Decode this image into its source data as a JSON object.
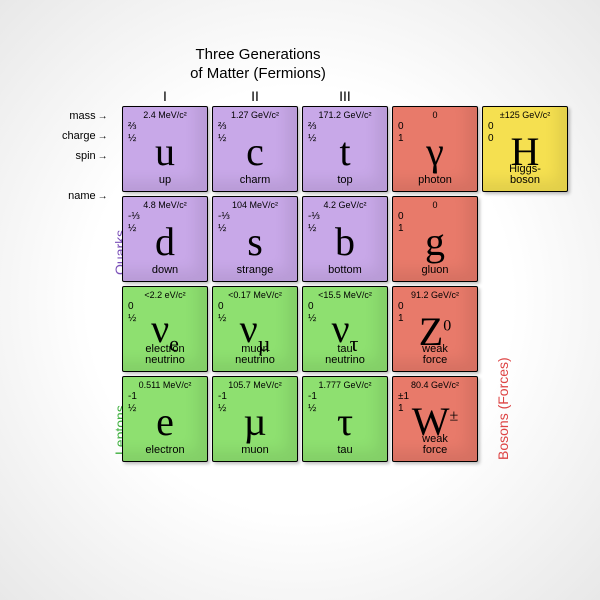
{
  "title_line1": "Three Generations",
  "title_line2": "of Matter (Fermions)",
  "generations": [
    "I",
    "II",
    "III"
  ],
  "leftLabels": [
    "mass",
    "charge",
    "spin",
    "",
    "name"
  ],
  "sideLabels": {
    "quarks": "Quarks",
    "leptons": "Leptons",
    "bosons": "Bosons (Forces)"
  },
  "colors": {
    "quark": "#c8a8e8",
    "lepton": "#8ee070",
    "boson": "#e87a6a",
    "higgs": "#f5e050"
  },
  "grid": [
    [
      {
        "mass": "2.4 MeV/c²",
        "charge": "⅔",
        "spin": "½",
        "symbol": "u",
        "name": "up",
        "color": "quark"
      },
      {
        "mass": "1.27 GeV/c²",
        "charge": "⅔",
        "spin": "½",
        "symbol": "c",
        "name": "charm",
        "color": "quark"
      },
      {
        "mass": "171.2 GeV/c²",
        "charge": "⅔",
        "spin": "½",
        "symbol": "t",
        "name": "top",
        "color": "quark"
      },
      {
        "mass": "0",
        "charge": "0",
        "spin": "1",
        "symbol": "γ",
        "name": "photon",
        "color": "boson"
      },
      {
        "mass": "±125 GeV/c²",
        "charge": "0",
        "spin": "0",
        "symbol": "H",
        "name": "Higgs-\nboson",
        "color": "higgs"
      }
    ],
    [
      {
        "mass": "4.8 MeV/c²",
        "charge": "-⅓",
        "spin": "½",
        "symbol": "d",
        "name": "down",
        "color": "quark"
      },
      {
        "mass": "104 MeV/c²",
        "charge": "-⅓",
        "spin": "½",
        "symbol": "s",
        "name": "strange",
        "color": "quark"
      },
      {
        "mass": "4.2 GeV/c²",
        "charge": "-⅓",
        "spin": "½",
        "symbol": "b",
        "name": "bottom",
        "color": "quark"
      },
      {
        "mass": "0",
        "charge": "0",
        "spin": "1",
        "symbol": "g",
        "name": "gluon",
        "color": "boson"
      },
      null
    ],
    [
      {
        "mass": "<2.2 eV/c²",
        "charge": "0",
        "spin": "½",
        "symbol": "νe",
        "name": "electron\nneutrino",
        "color": "lepton"
      },
      {
        "mass": "<0.17 MeV/c²",
        "charge": "0",
        "spin": "½",
        "symbol": "νµ",
        "name": "muon\nneutrino",
        "color": "lepton"
      },
      {
        "mass": "<15.5 MeV/c²",
        "charge": "0",
        "spin": "½",
        "symbol": "ντ",
        "name": "tau\nneutrino",
        "color": "lepton"
      },
      {
        "mass": "91.2 GeV/c²",
        "charge": "0",
        "spin": "1",
        "symbol": "Z",
        "name": "weak\nforce",
        "color": "boson",
        "super": "0"
      },
      null
    ],
    [
      {
        "mass": "0.511 MeV/c²",
        "charge": "-1",
        "spin": "½",
        "symbol": "e",
        "name": "electron",
        "color": "lepton"
      },
      {
        "mass": "105.7 MeV/c²",
        "charge": "-1",
        "spin": "½",
        "symbol": "µ",
        "name": "muon",
        "color": "lepton"
      },
      {
        "mass": "1.777 GeV/c²",
        "charge": "-1",
        "spin": "½",
        "symbol": "τ",
        "name": "tau",
        "color": "lepton"
      },
      {
        "mass": "80.4 GeV/c²",
        "charge": "±1",
        "spin": "1",
        "symbol": "W",
        "name": "weak\nforce",
        "color": "boson",
        "super": "±"
      },
      null
    ]
  ]
}
